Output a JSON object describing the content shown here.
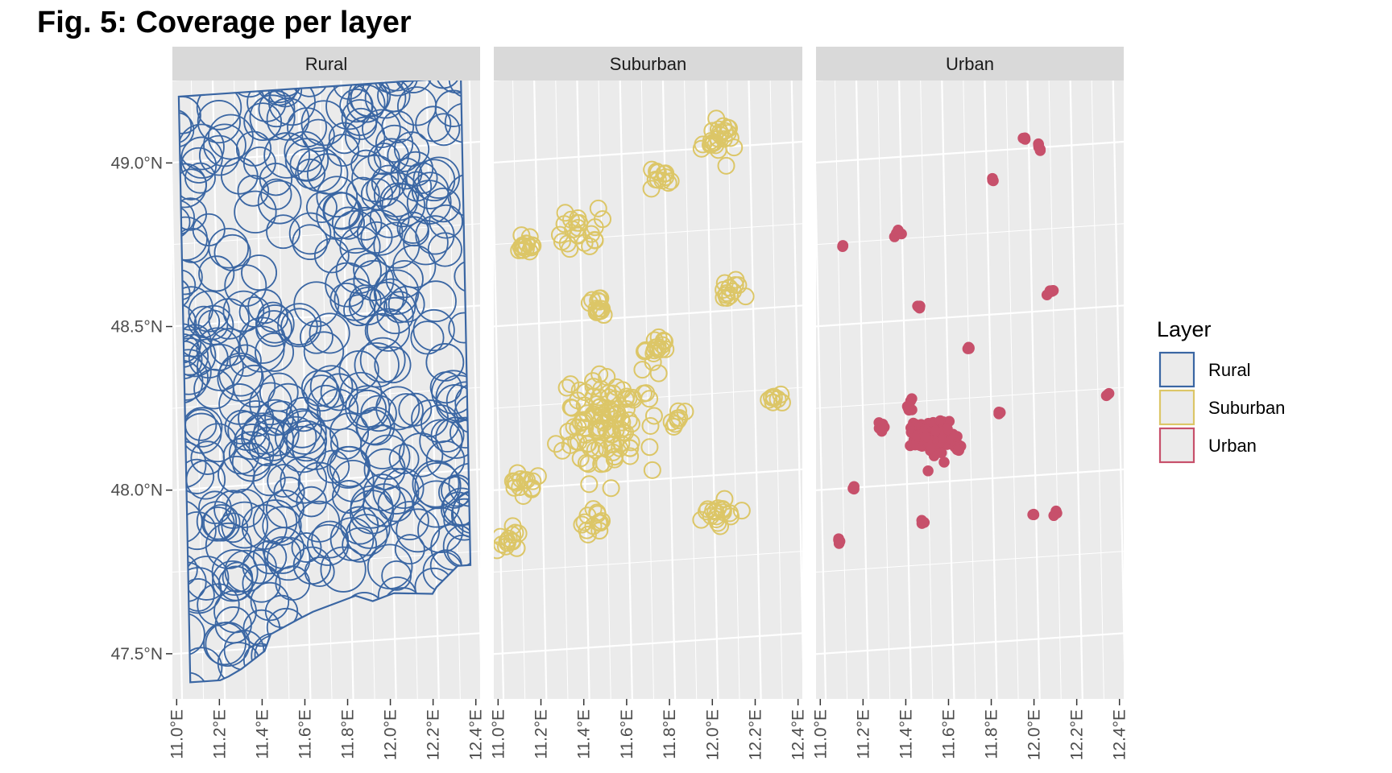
{
  "chart_data": {
    "type": "map",
    "title": "Fig. 5: Coverage per layer",
    "facets": [
      "Rural",
      "Suburban",
      "Urban"
    ],
    "x_ticks": [
      "11.0°E",
      "11.2°E",
      "11.4°E",
      "11.6°E",
      "11.8°E",
      "12.0°E",
      "12.2°E",
      "12.4°E"
    ],
    "x_tick_values": [
      11.0,
      11.2,
      11.4,
      11.6,
      11.8,
      12.0,
      12.2,
      12.4
    ],
    "y_ticks": [
      "47.5°N",
      "48.0°N",
      "48.5°N",
      "49.0°N"
    ],
    "y_tick_values": [
      47.5,
      48.0,
      48.5,
      49.0
    ],
    "xlim": [
      10.98,
      12.42
    ],
    "ylim": [
      47.33,
      49.22
    ],
    "grid": true,
    "legend": {
      "title": "Layer",
      "position": "right",
      "entries": [
        {
          "label": "Rural",
          "color": "#3a66a3"
        },
        {
          "label": "Suburban",
          "color": "#dcc667"
        },
        {
          "label": "Urban",
          "color": "#c7506b"
        }
      ]
    },
    "rural_region": {
      "polygon": [
        [
          11.04,
          49.2
        ],
        [
          12.36,
          49.2
        ],
        [
          12.36,
          47.71
        ],
        [
          12.3,
          47.71
        ],
        [
          12.2,
          47.65
        ],
        [
          12.18,
          47.63
        ],
        [
          12.0,
          47.64
        ],
        [
          11.9,
          47.62
        ],
        [
          11.82,
          47.64
        ],
        [
          11.62,
          47.6
        ],
        [
          11.55,
          47.58
        ],
        [
          11.42,
          47.54
        ],
        [
          11.39,
          47.49
        ],
        [
          11.28,
          47.44
        ],
        [
          11.22,
          47.42
        ],
        [
          11.18,
          47.41
        ],
        [
          11.1,
          47.41
        ],
        [
          11.04,
          47.41
        ]
      ],
      "circle_radius_deg": 0.09
    },
    "suburban_clusters": [
      {
        "lon": 11.15,
        "lat": 48.74,
        "spread": 0.06,
        "count": 16
      },
      {
        "lon": 11.4,
        "lat": 48.78,
        "spread": 0.1,
        "count": 22
      },
      {
        "lon": 11.78,
        "lat": 48.92,
        "spread": 0.06,
        "count": 12
      },
      {
        "lon": 12.05,
        "lat": 49.02,
        "spread": 0.09,
        "count": 24
      },
      {
        "lon": 11.47,
        "lat": 48.54,
        "spread": 0.06,
        "count": 14
      },
      {
        "lon": 12.09,
        "lat": 48.56,
        "spread": 0.06,
        "count": 14
      },
      {
        "lon": 11.75,
        "lat": 48.4,
        "spread": 0.06,
        "count": 16
      },
      {
        "lon": 11.52,
        "lat": 48.18,
        "spread": 0.24,
        "count": 110
      },
      {
        "lon": 11.1,
        "lat": 48.01,
        "spread": 0.06,
        "count": 14
      },
      {
        "lon": 11.04,
        "lat": 47.85,
        "spread": 0.06,
        "count": 14
      },
      {
        "lon": 11.43,
        "lat": 47.88,
        "spread": 0.07,
        "count": 14
      },
      {
        "lon": 12.02,
        "lat": 47.89,
        "spread": 0.08,
        "count": 18
      },
      {
        "lon": 11.84,
        "lat": 48.18,
        "spread": 0.05,
        "count": 8
      },
      {
        "lon": 12.3,
        "lat": 48.22,
        "spread": 0.04,
        "count": 8
      }
    ],
    "urban_clusters": [
      {
        "lon": 11.52,
        "lat": 48.14,
        "spread": 0.09,
        "count": 80
      },
      {
        "lon": 11.28,
        "lat": 48.18,
        "spread": 0.03,
        "count": 8
      },
      {
        "lon": 11.64,
        "lat": 48.1,
        "spread": 0.03,
        "count": 10
      },
      {
        "lon": 11.7,
        "lat": 48.4,
        "spread": 0.01,
        "count": 4
      },
      {
        "lon": 11.42,
        "lat": 48.24,
        "spread": 0.03,
        "count": 6
      },
      {
        "lon": 11.98,
        "lat": 49.03,
        "spread": 0.01,
        "count": 3
      },
      {
        "lon": 12.05,
        "lat": 49.0,
        "spread": 0.02,
        "count": 5
      },
      {
        "lon": 11.83,
        "lat": 48.91,
        "spread": 0.01,
        "count": 3
      },
      {
        "lon": 11.12,
        "lat": 48.74,
        "spread": 0.01,
        "count": 3
      },
      {
        "lon": 11.38,
        "lat": 48.77,
        "spread": 0.02,
        "count": 8
      },
      {
        "lon": 11.47,
        "lat": 48.54,
        "spread": 0.01,
        "count": 4
      },
      {
        "lon": 12.09,
        "lat": 48.56,
        "spread": 0.02,
        "count": 6
      },
      {
        "lon": 11.84,
        "lat": 48.2,
        "spread": 0.01,
        "count": 3
      },
      {
        "lon": 12.35,
        "lat": 48.23,
        "spread": 0.01,
        "count": 3
      },
      {
        "lon": 11.15,
        "lat": 48.0,
        "spread": 0.01,
        "count": 3
      },
      {
        "lon": 11.47,
        "lat": 47.88,
        "spread": 0.01,
        "count": 3
      },
      {
        "lon": 11.08,
        "lat": 47.84,
        "spread": 0.01,
        "count": 4
      },
      {
        "lon": 11.99,
        "lat": 47.88,
        "spread": 0.01,
        "count": 4
      },
      {
        "lon": 12.09,
        "lat": 47.88,
        "spread": 0.01,
        "count": 4
      }
    ]
  }
}
